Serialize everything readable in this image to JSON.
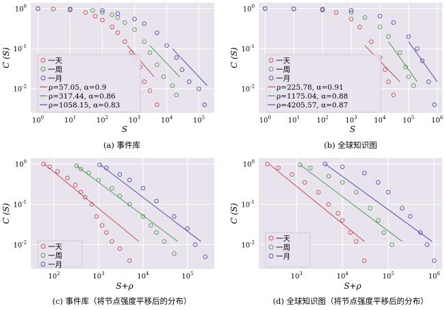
{
  "figure": {
    "colors": {
      "day": "#c0504d",
      "week": "#4f9a4f",
      "month": "#4f4fa8",
      "plot_bg": "#e9e3ee",
      "grid": "#ffffff"
    },
    "legend_series": [
      "一天",
      "一周",
      "一月"
    ]
  },
  "chart_data": [
    {
      "type": "scatter",
      "caption": "(a) 事件库",
      "xlabel": "S",
      "ylabel": "C (S)",
      "xscale": "log",
      "yscale": "log",
      "xlim": [
        0.6,
        300000
      ],
      "ylim": [
        0.0025,
        1.4
      ],
      "xticks": [
        1,
        10,
        100,
        1000,
        10000,
        100000
      ],
      "xtick_labels": [
        "10^0",
        "10^1",
        "10^2",
        "10^3",
        "10^4",
        "10^5"
      ],
      "yticks": [
        0.01,
        0.1,
        1
      ],
      "ytick_labels": [
        "10^-2",
        "10^-1",
        "10^0"
      ],
      "grid": true,
      "legend_position": "bottom-left",
      "series": [
        {
          "name": "一天",
          "kind": "points",
          "x": [
            1,
            3,
            10,
            30,
            60,
            100,
            200,
            300,
            500,
            800,
            1000,
            1500,
            2000,
            3000,
            5000
          ],
          "y": [
            1.0,
            0.98,
            0.92,
            0.8,
            0.65,
            0.52,
            0.35,
            0.25,
            0.15,
            0.08,
            0.05,
            0.035,
            0.015,
            0.009,
            0.004
          ]
        },
        {
          "name": "一周",
          "kind": "points",
          "x": [
            1,
            10,
            50,
            100,
            200,
            300,
            500,
            1000,
            2000,
            3000,
            5000,
            8000,
            15000,
            20000
          ],
          "y": [
            1.0,
            0.97,
            0.9,
            0.8,
            0.7,
            0.6,
            0.45,
            0.3,
            0.15,
            0.08,
            0.04,
            0.02,
            0.012,
            0.007
          ]
        },
        {
          "name": "一月",
          "kind": "points",
          "x": [
            1,
            10,
            100,
            300,
            1000,
            2000,
            5000,
            10000,
            20000,
            30000,
            50000,
            100000,
            150000
          ],
          "y": [
            1.0,
            0.98,
            0.9,
            0.75,
            0.55,
            0.42,
            0.25,
            0.12,
            0.06,
            0.03,
            0.015,
            0.01,
            0.004
          ]
        },
        {
          "name": "ρ=57.05, α=0.9",
          "kind": "line",
          "x": [
            600,
            4000
          ],
          "y": [
            0.12,
            0.02
          ]
        },
        {
          "name": "ρ=317.44, α=0.86",
          "kind": "line",
          "x": [
            3000,
            25000
          ],
          "y": [
            0.12,
            0.02
          ]
        },
        {
          "name": "ρ=1058.15, α=0.83",
          "kind": "line",
          "x": [
            15000,
            180000
          ],
          "y": [
            0.1,
            0.012
          ]
        }
      ]
    },
    {
      "type": "scatter",
      "caption": "(b) 全球知识图",
      "xlabel": "S",
      "ylabel": "C (S)",
      "xscale": "log",
      "yscale": "log",
      "xlim": [
        0.6,
        1500000
      ],
      "ylim": [
        0.0025,
        1.4
      ],
      "xticks": [
        1,
        10,
        100,
        1000,
        10000,
        100000,
        1000000
      ],
      "xtick_labels": [
        "10^0",
        "10^1",
        "10^2",
        "10^3",
        "10^4",
        "10^5",
        "10^6"
      ],
      "yticks": [
        0.01,
        0.1,
        1
      ],
      "ytick_labels": [
        "10^-2",
        "10^-1",
        "10^0"
      ],
      "grid": true,
      "legend_position": "bottom-left",
      "series": [
        {
          "name": "一天",
          "kind": "points",
          "x": [
            1,
            10,
            100,
            300,
            1000,
            2000,
            5000,
            10000,
            15000,
            20000,
            30000
          ],
          "y": [
            1.0,
            0.98,
            0.92,
            0.8,
            0.55,
            0.35,
            0.15,
            0.06,
            0.03,
            0.015,
            0.007
          ]
        },
        {
          "name": "一周",
          "kind": "points",
          "x": [
            1,
            10,
            100,
            1000,
            3000,
            10000,
            20000,
            50000,
            80000,
            100000,
            150000
          ],
          "y": [
            1.0,
            0.98,
            0.95,
            0.8,
            0.6,
            0.35,
            0.2,
            0.08,
            0.035,
            0.02,
            0.012
          ]
        },
        {
          "name": "一月",
          "kind": "points",
          "x": [
            1,
            10,
            100,
            1000,
            10000,
            30000,
            100000,
            200000,
            300000,
            500000,
            800000
          ],
          "y": [
            1.0,
            0.99,
            0.97,
            0.9,
            0.65,
            0.45,
            0.2,
            0.1,
            0.05,
            0.015,
            0.004
          ]
        },
        {
          "name": "ρ=225.78, α=0.91",
          "kind": "line",
          "x": [
            3000,
            50000
          ],
          "y": [
            0.12,
            0.015
          ]
        },
        {
          "name": "ρ=1175.04, α=0.88",
          "kind": "line",
          "x": [
            20000,
            200000
          ],
          "y": [
            0.15,
            0.015
          ]
        },
        {
          "name": "ρ=4205.57, α=0.87",
          "kind": "line",
          "x": [
            100000,
            1000000
          ],
          "y": [
            0.15,
            0.015
          ]
        }
      ]
    },
    {
      "type": "scatter",
      "caption": "(c) 事件库（将节点强度平移后的分布）",
      "xlabel": "S+ρ",
      "ylabel": "C (S)",
      "xscale": "log",
      "yscale": "log",
      "xlim": [
        30,
        400000
      ],
      "ylim": [
        0.0025,
        1.4
      ],
      "xticks": [
        100,
        1000,
        10000,
        100000
      ],
      "xtick_labels": [
        "10^2",
        "10^3",
        "10^4",
        "10^5"
      ],
      "yticks": [
        0.01,
        0.1,
        1
      ],
      "ytick_labels": [
        "10^-2",
        "10^-1",
        "10^0"
      ],
      "grid": true,
      "legend_position": "bottom-left",
      "series": [
        {
          "name": "一天",
          "kind": "points",
          "x": [
            58,
            80,
            120,
            200,
            300,
            400,
            500,
            700,
            900,
            1200,
            1500,
            2000,
            3000,
            5000
          ],
          "y": [
            1.0,
            0.85,
            0.65,
            0.45,
            0.3,
            0.2,
            0.15,
            0.1,
            0.05,
            0.03,
            0.02,
            0.012,
            0.008,
            0.004
          ]
        },
        {
          "name": "一周",
          "kind": "points",
          "x": [
            320,
            400,
            600,
            1000,
            2000,
            3000,
            5000,
            10000,
            15000,
            20000,
            30000,
            50000
          ],
          "y": [
            0.9,
            0.75,
            0.6,
            0.4,
            0.25,
            0.16,
            0.1,
            0.05,
            0.03,
            0.02,
            0.012,
            0.006
          ]
        },
        {
          "name": "一月",
          "kind": "points",
          "x": [
            1060,
            1500,
            3000,
            5000,
            10000,
            20000,
            50000,
            100000,
            150000,
            250000
          ],
          "y": [
            0.95,
            0.8,
            0.55,
            0.4,
            0.25,
            0.12,
            0.05,
            0.025,
            0.01,
            0.005
          ]
        },
        {
          "name": "",
          "kind": "line",
          "x": [
            60,
            8000
          ],
          "y": [
            1.0,
            0.012
          ]
        },
        {
          "name": "",
          "kind": "line",
          "x": [
            320,
            60000
          ],
          "y": [
            0.9,
            0.012
          ]
        },
        {
          "name": "",
          "kind": "line",
          "x": [
            1100,
            200000
          ],
          "y": [
            0.95,
            0.012
          ]
        }
      ]
    },
    {
      "type": "scatter",
      "caption": "(d) 全球知识图（将节点强度平移后的分布）",
      "xlabel": "S+ρ",
      "ylabel": "C (S)",
      "xscale": "log",
      "yscale": "log",
      "xlim": [
        150,
        1500000
      ],
      "ylim": [
        0.0025,
        1.4
      ],
      "xticks": [
        1000,
        10000,
        100000,
        1000000
      ],
      "xtick_labels": [
        "10^3",
        "10^4",
        "10^5",
        "10^6"
      ],
      "yticks": [
        0.01,
        0.1,
        1
      ],
      "ytick_labels": [
        "10^-2",
        "10^-1",
        "10^0"
      ],
      "grid": true,
      "legend_position": "bottom-left",
      "series": [
        {
          "name": "一天",
          "kind": "points",
          "x": [
            230,
            400,
            800,
            1500,
            3000,
            5000,
            8000,
            10000,
            15000,
            20000,
            30000
          ],
          "y": [
            1.0,
            0.8,
            0.55,
            0.35,
            0.2,
            0.1,
            0.06,
            0.04,
            0.02,
            0.012,
            0.004
          ]
        },
        {
          "name": "一周",
          "kind": "points",
          "x": [
            1200,
            2000,
            5000,
            10000,
            20000,
            40000,
            60000,
            80000,
            120000
          ],
          "y": [
            0.95,
            0.8,
            0.5,
            0.35,
            0.2,
            0.08,
            0.04,
            0.02,
            0.01
          ]
        },
        {
          "name": "一月",
          "kind": "points",
          "x": [
            4200,
            10000,
            30000,
            60000,
            100000,
            200000,
            300000,
            500000,
            700000,
            1000000
          ],
          "y": [
            1.0,
            0.85,
            0.6,
            0.35,
            0.2,
            0.08,
            0.05,
            0.02,
            0.01,
            0.004
          ]
        },
        {
          "name": "",
          "kind": "line",
          "x": [
            250,
            30000
          ],
          "y": [
            1.0,
            0.012
          ]
        },
        {
          "name": "",
          "kind": "line",
          "x": [
            1200,
            200000
          ],
          "y": [
            0.95,
            0.012
          ]
        },
        {
          "name": "",
          "kind": "line",
          "x": [
            4200,
            900000
          ],
          "y": [
            1.0,
            0.012
          ]
        }
      ]
    }
  ]
}
